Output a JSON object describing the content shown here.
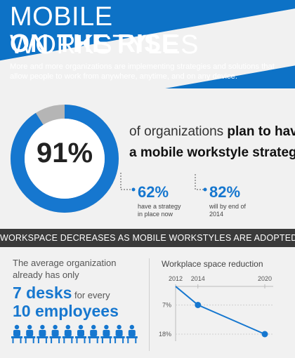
{
  "header": {
    "title_line1": "MOBILE WORKSTYLES",
    "title_line2": "ON THE RISE",
    "subtitle": "More and more organizations are implementing strategies and solutions that allow people to work from anywhere, anytime, and on any device."
  },
  "stat_main": {
    "value_pct": 91,
    "value_label": "91%",
    "text_plain": "of organizations ",
    "text_bold": "plan to have",
    "text_line2": "a mobile workstyle strategy"
  },
  "sub_stats": [
    {
      "value": "62%",
      "desc": "have a strategy in place now"
    },
    {
      "value": "82%",
      "desc": "will by end of 2014"
    }
  ],
  "band": {
    "text": "WORKSPACE DECREASES AS MOBILE WORKSTYLES ARE ADOPTED"
  },
  "desks": {
    "intro": "The average organization already has only",
    "count": "7 desks",
    "for_every": " for every",
    "employees": "10 employees",
    "total_icons": 10,
    "desk_icons": 7
  },
  "chart_data": {
    "type": "line",
    "title": "Workplace space reduction",
    "x": [
      2012,
      2014,
      2020
    ],
    "y": [
      0,
      7,
      18
    ],
    "x_ticks": [
      "2012",
      "2014",
      "2020"
    ],
    "y_ticks": [
      "7%",
      "18%"
    ],
    "y_tick_values": [
      7,
      18
    ],
    "xlim": [
      2012,
      2020
    ],
    "ylim": [
      0,
      18
    ],
    "y_inverted": true
  },
  "colors": {
    "primary": "#0d72c6",
    "accent": "#1677cf",
    "donut_rest": "#b5b5b5",
    "band": "#3a3a3a"
  }
}
